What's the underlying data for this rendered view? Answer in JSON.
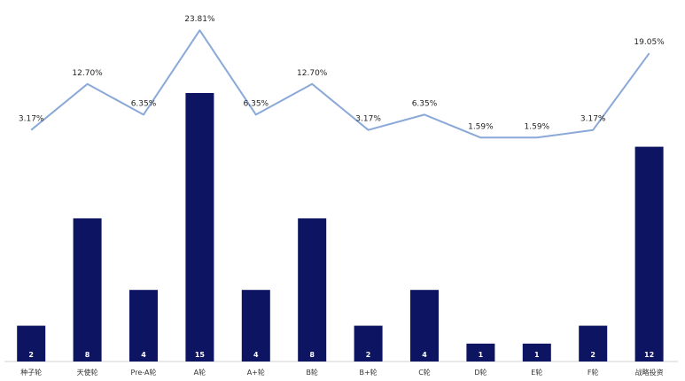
{
  "chart_data": {
    "type": "bar",
    "categories": [
      "种子轮",
      "天使轮",
      "Pre-A轮",
      "A轮",
      "A+轮",
      "B轮",
      "B+轮",
      "C轮",
      "D轮",
      "E轮",
      "F轮",
      "战略投资"
    ],
    "series": [
      {
        "type": "bar",
        "values": [
          2,
          8,
          4,
          15,
          4,
          8,
          2,
          4,
          1,
          1,
          2,
          12
        ],
        "color": "#0d1461"
      },
      {
        "type": "line",
        "values": [
          3.17,
          12.7,
          6.35,
          23.81,
          6.35,
          12.7,
          3.17,
          6.35,
          1.59,
          1.59,
          3.17,
          19.05
        ],
        "labels": [
          "3.17%",
          "12.70%",
          "6.35%",
          "23.81%",
          "6.35%",
          "12.70%",
          "3.17%",
          "6.35%",
          "1.59%",
          "1.59%",
          "3.17%",
          "19.05%"
        ],
        "color": "#8aa8d8"
      }
    ],
    "title": "",
    "xlabel": "",
    "ylabel": "",
    "grid": false,
    "legend": "none"
  }
}
